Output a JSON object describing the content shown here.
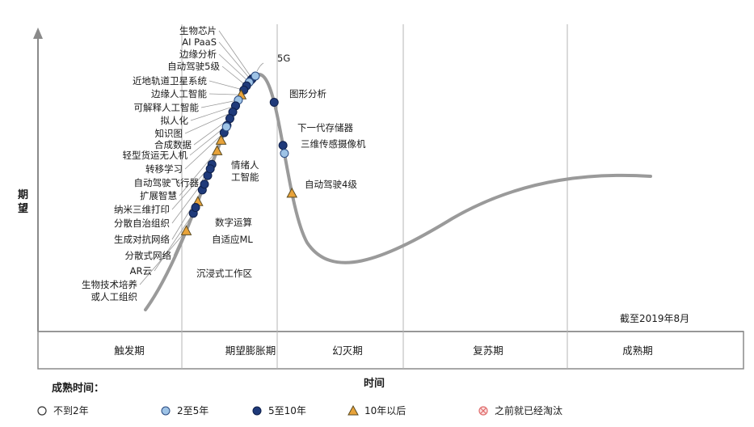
{
  "chart_data": {
    "type": "scatter",
    "title": "",
    "note": "截至2019年8月",
    "xlabel": "时间",
    "ylabel": "期望",
    "phases": [
      "触发期",
      "期望膨胀期",
      "幻灭期",
      "复苏期",
      "成熟期"
    ],
    "legend_title": "成熟时间：",
    "legend": [
      {
        "key": "lt2",
        "label": "不到2年",
        "marker": "circle-open",
        "color": "#ffffff"
      },
      {
        "key": "y2to5",
        "label": "2至5年",
        "marker": "circle",
        "color": "#9ec3e6"
      },
      {
        "key": "y5to10",
        "label": "5至10年",
        "marker": "circle",
        "color": "#1f3a7a"
      },
      {
        "key": "gt10",
        "label": "10年以后",
        "marker": "triangle",
        "color": "#e8a33a"
      },
      {
        "key": "obsolete",
        "label": "之前就已经淘汰",
        "marker": "circle-x",
        "color": "#e06b6b"
      }
    ],
    "points": [
      {
        "label": "生物芯片",
        "t": 0.482,
        "category": "y5to10"
      },
      {
        "label": "AI PaaS",
        "t": 0.475,
        "category": "y5to10"
      },
      {
        "label": "边缘分析",
        "t": 0.465,
        "category": "y2to5"
      },
      {
        "label": "自动驾驶5级",
        "t": 0.45,
        "category": "y5to10"
      },
      {
        "label": "近地轨道卫星系统",
        "t": 0.435,
        "category": "y5to10"
      },
      {
        "label": "边缘人工智能",
        "t": 0.42,
        "category": "gt10"
      },
      {
        "label": "可解释人工智能",
        "t": 0.405,
        "category": "y2to5"
      },
      {
        "label": "拟人化",
        "t": 0.39,
        "category": "y5to10"
      },
      {
        "label": "知识图",
        "t": 0.375,
        "category": "y5to10"
      },
      {
        "label": "合成数据",
        "t": 0.36,
        "category": "y5to10"
      },
      {
        "label": "轻型货运无人机",
        "t": 0.345,
        "category": "y5to10"
      },
      {
        "label": "转移学习",
        "t": 0.33,
        "category": "y5to10"
      },
      {
        "label": "自动驾驶飞行器",
        "t": 0.315,
        "category": "gt10"
      },
      {
        "label": "扩展智慧",
        "t": 0.295,
        "category": "gt10"
      },
      {
        "label": "纳米三维打印",
        "t": 0.27,
        "category": "y5to10"
      },
      {
        "label": "分散自治组织",
        "t": 0.25,
        "category": "y5to10"
      },
      {
        "label": "生成对抗网络",
        "t": 0.225,
        "category": "y5to10"
      },
      {
        "label": "分散式网络",
        "t": 0.205,
        "category": "gt10"
      },
      {
        "label": "AR云",
        "t": 0.185,
        "category": "y5to10"
      },
      {
        "label": "生物技术培养或人工组织",
        "t": 0.155,
        "category": "gt10"
      },
      {
        "label": "情绪人工智能",
        "t": 0.342,
        "category": "y2to5"
      },
      {
        "label": "数字运算",
        "t": 0.262,
        "category": "y5to10"
      },
      {
        "label": "自适应ML",
        "t": 0.235,
        "category": "y5to10"
      },
      {
        "label": "沉浸式工作区",
        "t": 0.195,
        "category": "y5to10"
      },
      {
        "label": "5G",
        "t": 0.5,
        "category": "y2to5"
      },
      {
        "label": "图形分析",
        "t": 0.55,
        "category": "y5to10"
      },
      {
        "label": "下一代存储器",
        "t": 0.58,
        "category": "y5to10"
      },
      {
        "label": "三维传感摄像机",
        "t": 0.585,
        "category": "y2to5"
      },
      {
        "label": "自动驾驶4级",
        "t": 0.61,
        "category": "gt10"
      }
    ]
  }
}
